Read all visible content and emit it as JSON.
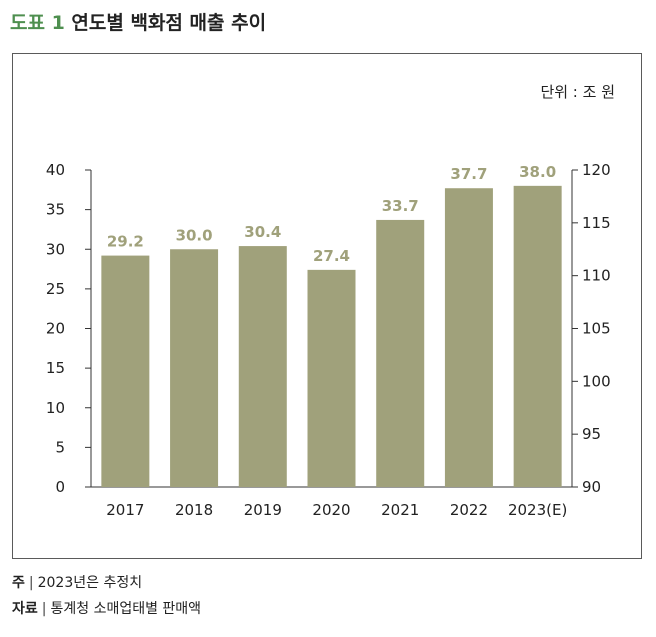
{
  "header": {
    "label": "도표 1",
    "title": "연도별 백화점 매출 추이"
  },
  "chart_data": {
    "type": "bar",
    "unit_label": "단위 : 조 원",
    "categories": [
      "2017",
      "2018",
      "2019",
      "2020",
      "2021",
      "2022",
      "2023(E)"
    ],
    "values": [
      29.2,
      30.0,
      30.4,
      27.4,
      33.7,
      37.7,
      38.0
    ],
    "data_labels": [
      "29.2",
      "30.0",
      "30.4",
      "27.4",
      "33.7",
      "37.7",
      "38.0"
    ],
    "ylim": [
      0,
      40
    ],
    "yticks": [
      "0",
      "5",
      "10",
      "15",
      "20",
      "25",
      "30",
      "35",
      "40"
    ],
    "y2lim": [
      90,
      120
    ],
    "y2ticks": [
      "90",
      "95",
      "100",
      "105",
      "110",
      "115",
      "120"
    ],
    "bar_color": "#a0a17b",
    "label_color": "#a0a17b",
    "grid": false
  },
  "notes": {
    "note_label": "주",
    "note_text": "2023년은 추정치",
    "source_label": "자료",
    "source_text": "통계청 소매업태별 판매액"
  }
}
